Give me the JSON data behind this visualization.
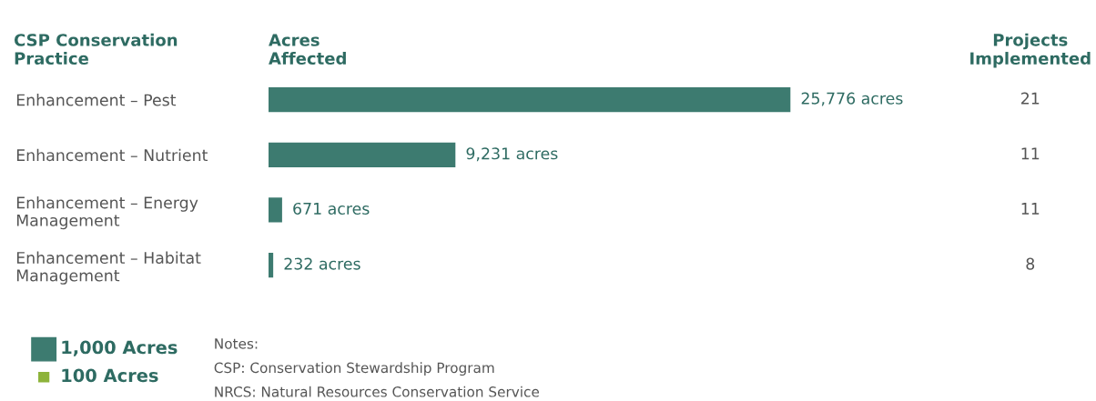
{
  "chart_data": [
    {
      "type": "bar",
      "orientation": "horizontal",
      "title": "Acres\nAffected",
      "ylabel": "CSP Conservation\nPractice",
      "categories": [
        "Enhancement – Pest",
        "Enhancement – Nutrient",
        "Enhancement – Energy\nManagement",
        "Enhancement – Habitat\nManagement"
      ],
      "values": [
        25776,
        9231,
        671,
        232
      ],
      "color": "#3d7b70",
      "value_labels": [
        "25,776 acres",
        "9,231 acres",
        "671 acres",
        "232 acres"
      ],
      "tick_labels": "y",
      "grid": false,
      "annotations": [
        "1,000 Acres",
        "100 Acres",
        "Notes:",
        "CSP: Conservation Stewardship Program",
        "NRCS: Natural Resources Conservation Service"
      ]
    },
    {
      "type": "other",
      "title": "Projects\nImplemented",
      "annotations": [
        "21",
        "11",
        "11",
        "8"
      ]
    }
  ]
}
